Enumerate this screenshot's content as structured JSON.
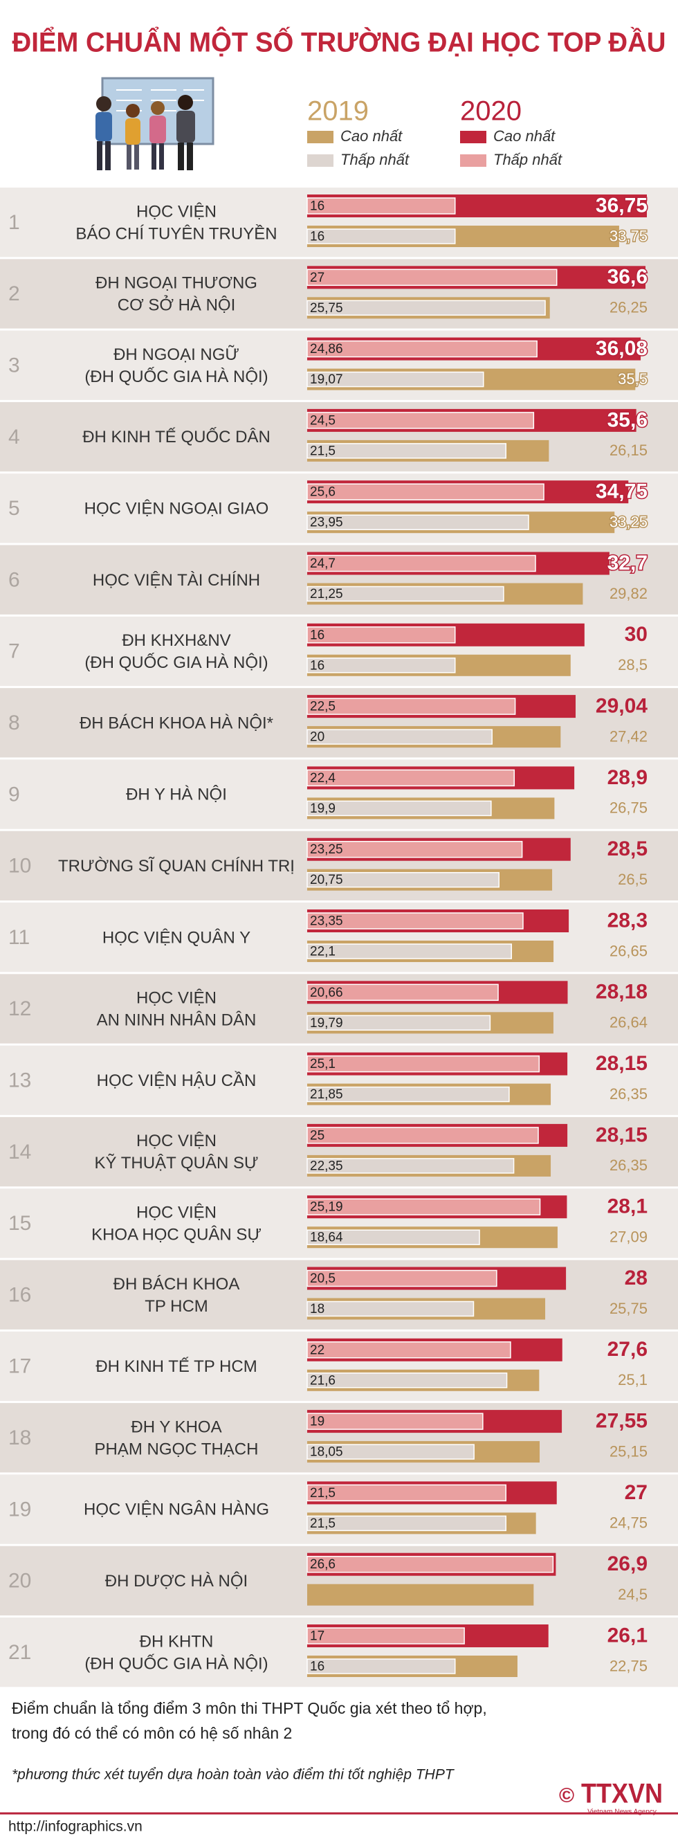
{
  "chart_data": {
    "type": "grouped-bar",
    "title": "ĐIỂM CHUẨN MỘT SỐ TRƯỜNG ĐẠI HỌC TOP ĐẦU",
    "ranks": [
      1,
      2,
      3,
      4,
      5,
      6,
      7,
      8,
      9,
      10,
      11,
      12,
      13,
      14,
      15,
      16,
      17,
      18,
      19,
      20,
      21
    ],
    "categories": [
      [
        "HỌC VIỆN",
        "BÁO CHÍ TUYÊN TRUYỀN"
      ],
      [
        "ĐH NGOẠI THƯƠNG",
        "CƠ SỞ HÀ NỘI"
      ],
      [
        "ĐH NGOẠI NGỮ",
        "(ĐH QUỐC GIA HÀ NỘI)"
      ],
      [
        "ĐH KINH TẾ QUỐC DÂN"
      ],
      [
        "HỌC VIỆN NGOẠI GIAO"
      ],
      [
        "HỌC VIỆN TÀI CHÍNH"
      ],
      [
        "ĐH KHXH&NV",
        "(ĐH QUỐC GIA HÀ NỘI)"
      ],
      [
        "ĐH BÁCH KHOA HÀ NỘI*"
      ],
      [
        "ĐH Y HÀ NỘI"
      ],
      [
        "TRƯỜNG SĨ QUAN CHÍNH TRỊ"
      ],
      [
        "HỌC VIỆN QUÂN Y"
      ],
      [
        "HỌC VIỆN",
        "AN NINH NHÂN DÂN"
      ],
      [
        "HỌC VIỆN HẬU CẦN"
      ],
      [
        "HỌC VIỆN",
        "KỸ THUẬT QUÂN SỰ"
      ],
      [
        "HỌC VIỆN",
        "KHOA HỌC QUÂN SỰ"
      ],
      [
        "ĐH BÁCH KHOA",
        "TP HCM"
      ],
      [
        "ĐH KINH TẾ TP HCM"
      ],
      [
        "ĐH Y KHOA",
        "PHẠM NGỌC THẠCH"
      ],
      [
        "HỌC VIỆN NGÂN HÀNG"
      ],
      [
        "ĐH DƯỢC HÀ NỘI"
      ],
      [
        "ĐH KHTN",
        "(ĐH QUỐC GIA HÀ NỘI)"
      ]
    ],
    "groups": [
      {
        "label": "2019",
        "color": "#c9a366",
        "series": [
          {
            "name": "Cao nhất",
            "color": "#c9a366",
            "values": [
              33.75,
              26.25,
              35.5,
              26.15,
              33.25,
              29.82,
              28.5,
              27.42,
              26.75,
              26.5,
              26.65,
              26.64,
              26.35,
              26.35,
              27.09,
              25.75,
              25.1,
              25.15,
              24.75,
              24.5,
              22.75
            ],
            "value_labels": [
              "33,75",
              "26,25",
              "35,5",
              "26,15",
              "33,25",
              "29,82",
              "28,5",
              "27,42",
              "26,75",
              "26,5",
              "26,65",
              "26,64",
              "26,35",
              "26,35",
              "27,09",
              "25,75",
              "25,1",
              "25,15",
              "24,75",
              "24,5",
              "22,75"
            ]
          },
          {
            "name": "Thấp nhất",
            "color": "#ddd5d0",
            "values": [
              16,
              25.75,
              19.07,
              21.5,
              23.95,
              21.25,
              16,
              20,
              19.9,
              20.75,
              22.1,
              19.79,
              21.85,
              22.35,
              18.64,
              18,
              21.6,
              18.05,
              21.5,
              null,
              16
            ],
            "value_labels": [
              "16",
              "25,75",
              "19,07",
              "21,5",
              "23,95",
              "21,25",
              "16",
              "20",
              "19,9",
              "20,75",
              "22,1",
              "19,79",
              "21,85",
              "22,35",
              "18,64",
              "18",
              "21,6",
              "18,05",
              "21,5",
              null,
              "16"
            ]
          }
        ]
      },
      {
        "label": "2020",
        "color": "#b8213a",
        "series": [
          {
            "name": "Cao nhất",
            "color": "#c1263b",
            "values": [
              36.75,
              36.6,
              36.08,
              35.6,
              34.75,
              32.7,
              30,
              29.04,
              28.9,
              28.5,
              28.3,
              28.18,
              28.15,
              28.15,
              28.1,
              28,
              27.6,
              27.55,
              27,
              26.9,
              26.1
            ],
            "value_labels": [
              "36,75",
              "36,6",
              "36,08",
              "35,6",
              "34,75",
              "32,7",
              "30",
              "29,04",
              "28,9",
              "28,5",
              "28,3",
              "28,18",
              "28,15",
              "28,15",
              "28,1",
              "28",
              "27,6",
              "27,55",
              "27",
              "26,9",
              "26,1"
            ]
          },
          {
            "name": "Thấp nhất",
            "color": "#e9a0a0",
            "values": [
              16,
              27,
              24.86,
              24.5,
              25.6,
              24.7,
              16,
              22.5,
              22.4,
              23.25,
              23.35,
              20.66,
              25.1,
              25,
              25.19,
              20.5,
              22,
              19,
              21.5,
              26.6,
              17
            ],
            "value_labels": [
              "16",
              "27",
              "24,86",
              "24,5",
              "25,6",
              "24,7",
              "16",
              "22,5",
              "22,4",
              "23,25",
              "23,35",
              "20,66",
              "25,1",
              "25",
              "25,19",
              "20,5",
              "22",
              "19",
              "21,5",
              "26,6",
              "17"
            ]
          }
        ]
      }
    ],
    "notes": [
      "Điểm chuẩn là tổng điểm 3 môn thi THPT Quốc gia xét theo tổ hợp,",
      "trong đó có thể có môn có hệ số nhân 2"
    ],
    "footnote": "*phương thức xét tuyển dựa hoàn toàn vào điểm thi tốt nghiệp THPT",
    "source": "http://infographics.vn",
    "copyright": "©",
    "logo": "TTXVN",
    "logo_subtitle": "Vietnam News Agency"
  }
}
